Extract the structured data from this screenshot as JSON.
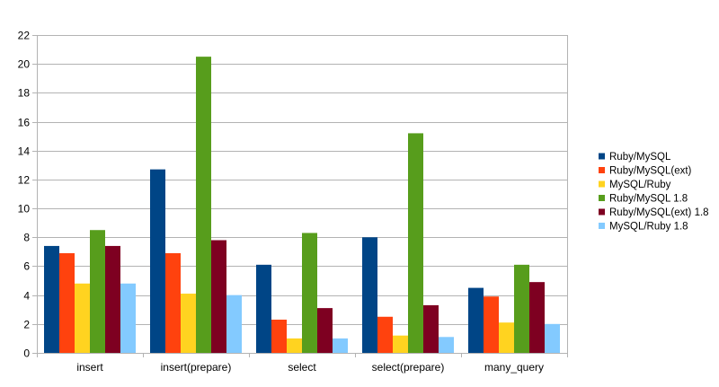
{
  "chart_data": {
    "type": "bar",
    "categories": [
      "insert",
      "insert(prepare)",
      "select",
      "select(prepare)",
      "many_query"
    ],
    "series": [
      {
        "name": "Ruby/MySQL",
        "color": "#004586",
        "values": [
          7.4,
          12.7,
          6.1,
          8.0,
          4.5
        ]
      },
      {
        "name": "Ruby/MySQL(ext)",
        "color": "#ff420e",
        "values": [
          6.9,
          6.9,
          2.3,
          2.5,
          3.9
        ]
      },
      {
        "name": "MySQL/Ruby",
        "color": "#ffd320",
        "values": [
          4.8,
          4.1,
          1.0,
          1.2,
          2.1
        ]
      },
      {
        "name": "Ruby/MySQL 1.8",
        "color": "#579d1c",
        "values": [
          8.5,
          20.5,
          8.3,
          15.2,
          6.1
        ]
      },
      {
        "name": "Ruby/MySQL(ext) 1.8",
        "color": "#7e0021",
        "values": [
          7.4,
          7.8,
          3.1,
          3.3,
          4.9
        ]
      },
      {
        "name": "MySQL/Ruby 1.8",
        "color": "#83caff",
        "values": [
          4.8,
          4.0,
          1.0,
          1.1,
          2.0
        ]
      }
    ],
    "ylim": [
      0,
      22
    ],
    "yticks": [
      0,
      2,
      4,
      6,
      8,
      10,
      12,
      14,
      16,
      18,
      20,
      22
    ],
    "grid": true,
    "legend": "right",
    "title": "",
    "xlabel": "",
    "ylabel": ""
  }
}
